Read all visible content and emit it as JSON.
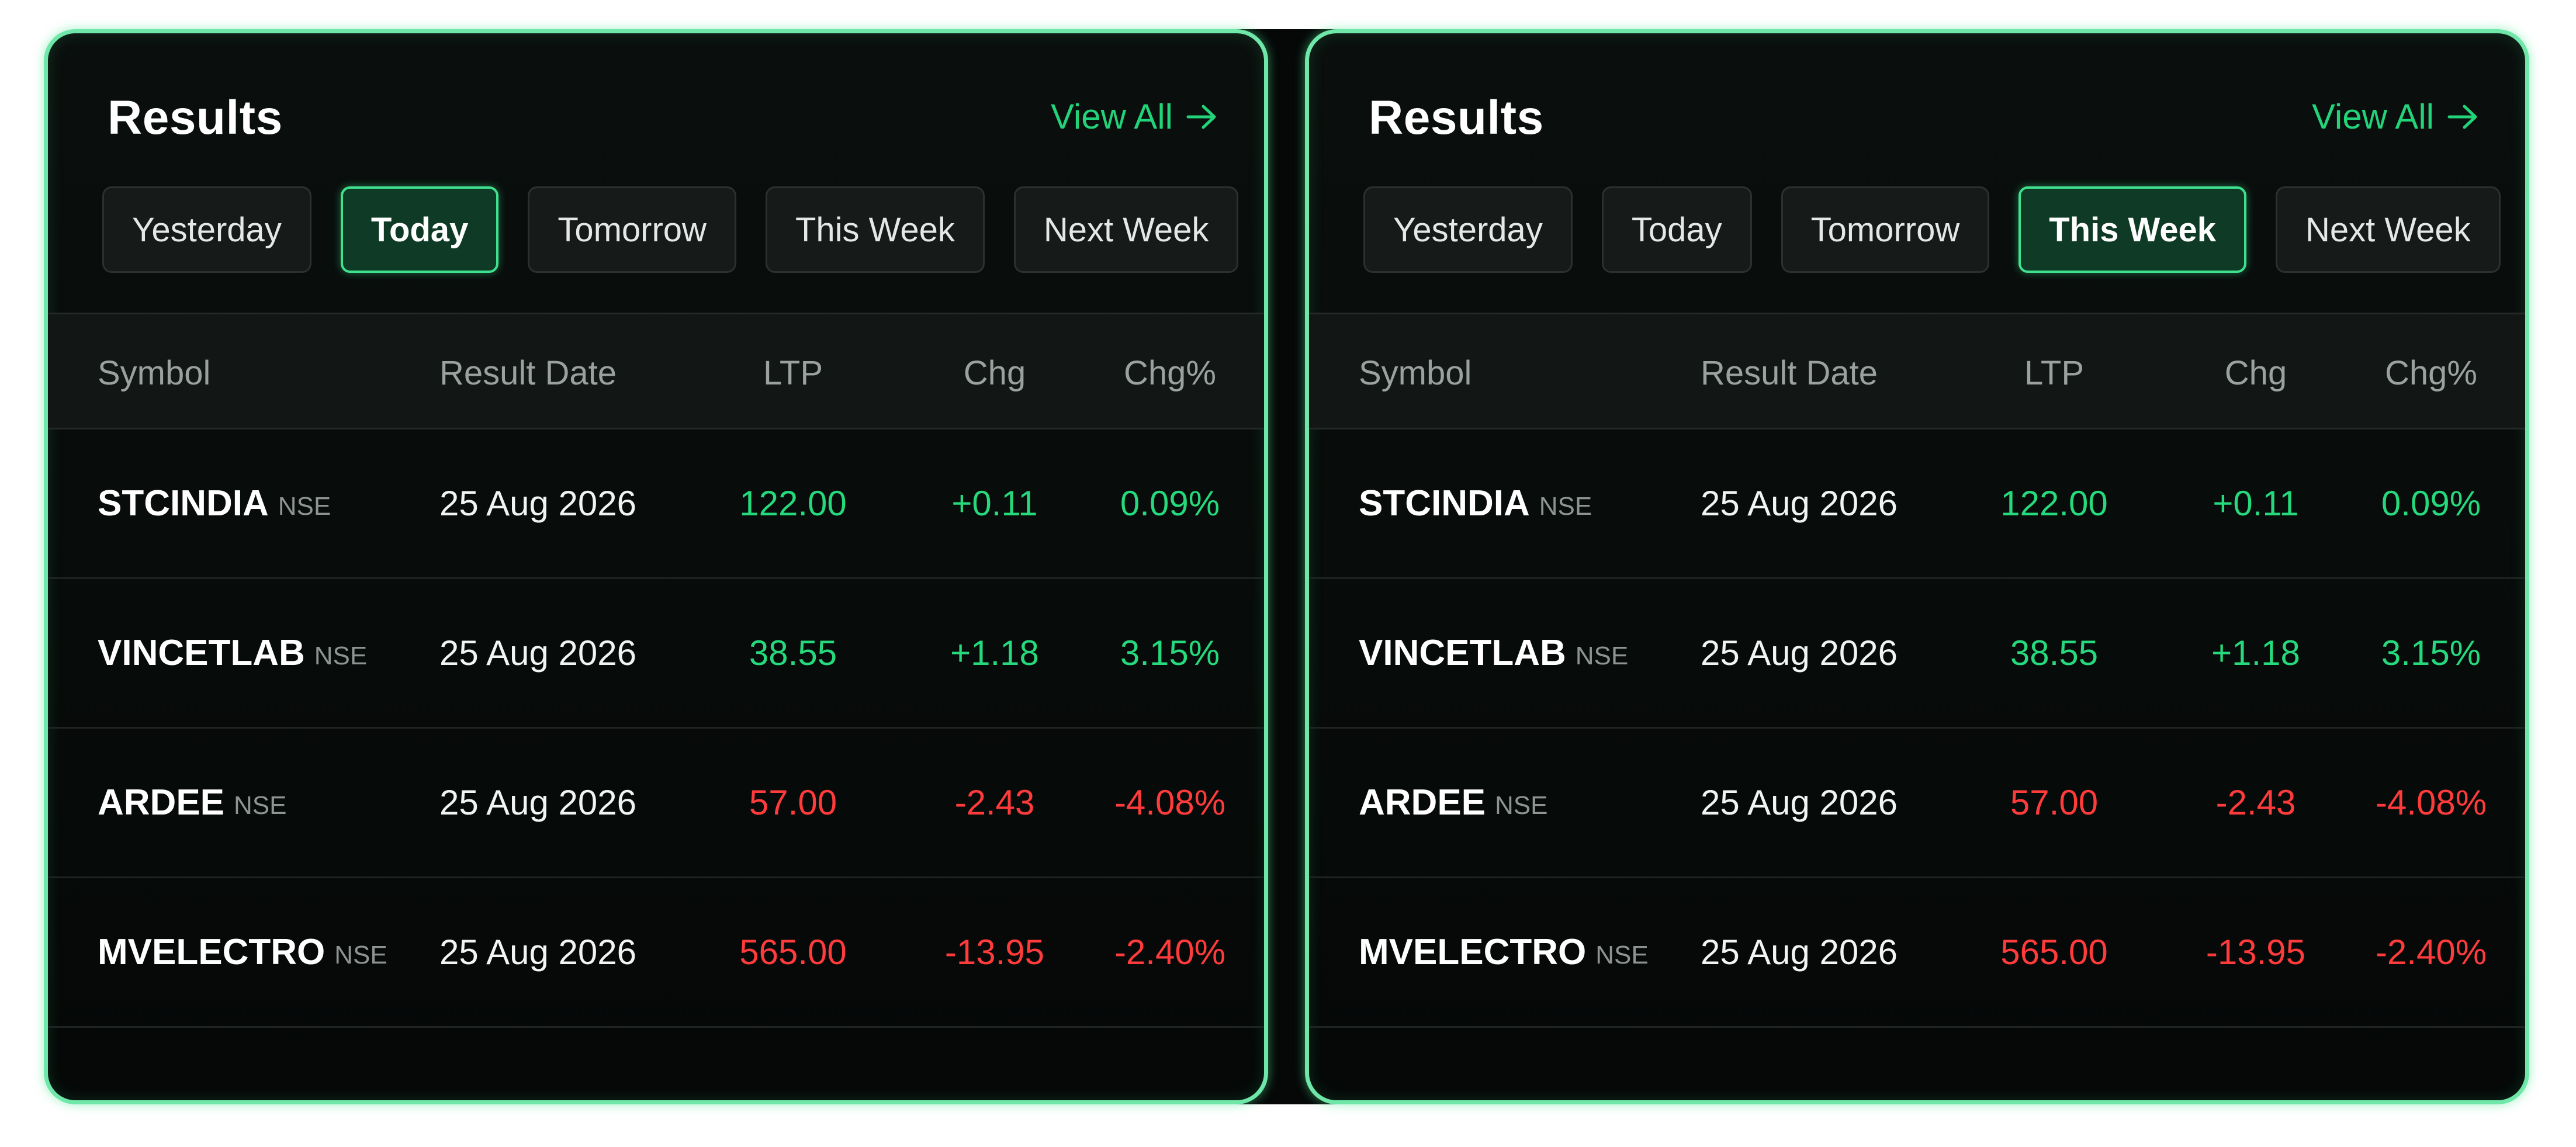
{
  "colors": {
    "accent": "#3fe08e",
    "positive": "#25d97c",
    "negative": "#ff3b3b",
    "panel_bg": "#050807",
    "border_glow": "#6ee7a8"
  },
  "panels": [
    {
      "title": "Results",
      "view_all": "View All",
      "view_all_icon": "arrow-right-icon",
      "filters": [
        "Yesterday",
        "Today",
        "Tomorrow",
        "This Week",
        "Next Week"
      ],
      "active_filter": "Today",
      "columns": [
        "Symbol",
        "Result Date",
        "LTP",
        "Chg",
        "Chg%"
      ],
      "rows": [
        {
          "symbol": "STCINDIA",
          "exchange": "NSE",
          "date": "25 Aug 2026",
          "ltp": "122.00",
          "chg": "+0.11",
          "chg_pct": "0.09%",
          "trend": "pos"
        },
        {
          "symbol": "VINCETLAB",
          "exchange": "NSE",
          "date": "25 Aug 2026",
          "ltp": "38.55",
          "chg": "+1.18",
          "chg_pct": "3.15%",
          "trend": "pos"
        },
        {
          "symbol": "ARDEE",
          "exchange": "NSE",
          "date": "25 Aug 2026",
          "ltp": "57.00",
          "chg": "-2.43",
          "chg_pct": "-4.08%",
          "trend": "neg"
        },
        {
          "symbol": "MVELECTRO",
          "exchange": "NSE",
          "date": "25 Aug 2026",
          "ltp": "565.00",
          "chg": "-13.95",
          "chg_pct": "-2.40%",
          "trend": "neg"
        }
      ]
    },
    {
      "title": "Results",
      "view_all": "View All",
      "view_all_icon": "arrow-right-icon",
      "filters": [
        "Yesterday",
        "Today",
        "Tomorrow",
        "This Week",
        "Next Week"
      ],
      "active_filter": "This Week",
      "columns": [
        "Symbol",
        "Result Date",
        "LTP",
        "Chg",
        "Chg%"
      ],
      "rows": [
        {
          "symbol": "STCINDIA",
          "exchange": "NSE",
          "date": "25 Aug 2026",
          "ltp": "122.00",
          "chg": "+0.11",
          "chg_pct": "0.09%",
          "trend": "pos"
        },
        {
          "symbol": "VINCETLAB",
          "exchange": "NSE",
          "date": "25 Aug 2026",
          "ltp": "38.55",
          "chg": "+1.18",
          "chg_pct": "3.15%",
          "trend": "pos"
        },
        {
          "symbol": "ARDEE",
          "exchange": "NSE",
          "date": "25 Aug 2026",
          "ltp": "57.00",
          "chg": "-2.43",
          "chg_pct": "-4.08%",
          "trend": "neg"
        },
        {
          "symbol": "MVELECTRO",
          "exchange": "NSE",
          "date": "25 Aug 2026",
          "ltp": "565.00",
          "chg": "-13.95",
          "chg_pct": "-2.40%",
          "trend": "neg"
        }
      ]
    }
  ]
}
